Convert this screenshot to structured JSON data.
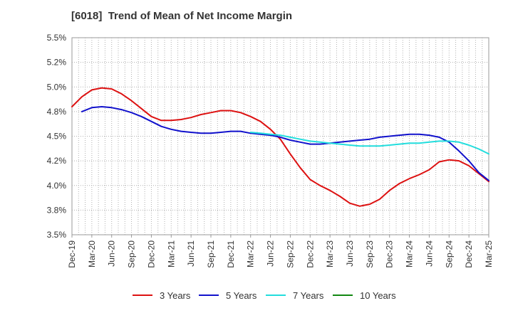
{
  "chart_data": {
    "type": "line",
    "title": "[6018]  Trend of Mean of Net Income Margin",
    "xlabel": "",
    "ylabel": "",
    "grid": true,
    "legend_position": "bottom",
    "ylim": [
      3.5,
      5.5
    ],
    "y_ticks": [
      "5.5%",
      "5.2%",
      "5.0%",
      "4.8%",
      "4.5%",
      "4.2%",
      "4.0%",
      "3.8%",
      "3.5%"
    ],
    "x_ticks": [
      "Dec-19",
      "Mar-20",
      "Jun-20",
      "Sep-20",
      "Dec-20",
      "Mar-21",
      "Jun-21",
      "Sep-21",
      "Dec-21",
      "Mar-22",
      "Jun-22",
      "Sep-22",
      "Dec-22",
      "Mar-23",
      "Jun-23",
      "Sep-23",
      "Dec-23",
      "Mar-24",
      "Jun-24",
      "Sep-24",
      "Dec-24",
      "Mar-25"
    ],
    "series": [
      {
        "name": "3 Years",
        "color": "#dd1111",
        "points": [
          [
            0,
            4.8
          ],
          [
            1,
            4.9
          ],
          [
            2,
            4.97
          ],
          [
            3,
            4.99
          ],
          [
            4,
            4.98
          ],
          [
            5,
            4.93
          ],
          [
            6,
            4.86
          ],
          [
            7,
            4.78
          ],
          [
            8,
            4.7
          ],
          [
            9,
            4.66
          ],
          [
            10,
            4.66
          ],
          [
            11,
            4.67
          ],
          [
            12,
            4.69
          ],
          [
            13,
            4.72
          ],
          [
            14,
            4.74
          ],
          [
            15,
            4.76
          ],
          [
            16,
            4.76
          ],
          [
            17,
            4.74
          ],
          [
            18,
            4.7
          ],
          [
            19,
            4.65
          ],
          [
            20,
            4.57
          ],
          [
            21,
            4.47
          ],
          [
            22,
            4.32
          ],
          [
            23,
            4.18
          ],
          [
            24,
            4.06
          ],
          [
            25,
            4.0
          ],
          [
            26,
            3.95
          ],
          [
            27,
            3.89
          ],
          [
            28,
            3.82
          ],
          [
            29,
            3.79
          ],
          [
            30,
            3.81
          ],
          [
            31,
            3.86
          ],
          [
            32,
            3.95
          ],
          [
            33,
            4.02
          ],
          [
            34,
            4.07
          ],
          [
            35,
            4.11
          ],
          [
            36,
            4.16
          ],
          [
            37,
            4.24
          ],
          [
            38,
            4.26
          ],
          [
            39,
            4.25
          ],
          [
            40,
            4.2
          ],
          [
            41,
            4.12
          ],
          [
            42,
            4.04
          ]
        ]
      },
      {
        "name": "5 Years",
        "color": "#1111cc",
        "points": [
          [
            1,
            4.75
          ],
          [
            2,
            4.79
          ],
          [
            3,
            4.8
          ],
          [
            4,
            4.79
          ],
          [
            5,
            4.77
          ],
          [
            6,
            4.74
          ],
          [
            7,
            4.7
          ],
          [
            8,
            4.65
          ],
          [
            9,
            4.6
          ],
          [
            10,
            4.57
          ],
          [
            11,
            4.55
          ],
          [
            12,
            4.54
          ],
          [
            13,
            4.53
          ],
          [
            14,
            4.53
          ],
          [
            15,
            4.54
          ],
          [
            16,
            4.55
          ],
          [
            17,
            4.55
          ],
          [
            18,
            4.53
          ],
          [
            19,
            4.52
          ],
          [
            20,
            4.51
          ],
          [
            21,
            4.49
          ],
          [
            22,
            4.46
          ],
          [
            23,
            4.44
          ],
          [
            24,
            4.42
          ],
          [
            25,
            4.42
          ],
          [
            26,
            4.43
          ],
          [
            27,
            4.44
          ],
          [
            28,
            4.45
          ],
          [
            29,
            4.46
          ],
          [
            30,
            4.47
          ],
          [
            31,
            4.49
          ],
          [
            32,
            4.5
          ],
          [
            33,
            4.51
          ],
          [
            34,
            4.52
          ],
          [
            35,
            4.52
          ],
          [
            36,
            4.51
          ],
          [
            37,
            4.49
          ],
          [
            38,
            4.44
          ],
          [
            39,
            4.35
          ],
          [
            40,
            4.25
          ],
          [
            41,
            4.13
          ],
          [
            42,
            4.05
          ]
        ]
      },
      {
        "name": "7 Years",
        "color": "#22dddd",
        "points": [
          [
            18,
            4.54
          ],
          [
            19,
            4.53
          ],
          [
            20,
            4.52
          ],
          [
            21,
            4.51
          ],
          [
            22,
            4.49
          ],
          [
            23,
            4.47
          ],
          [
            24,
            4.45
          ],
          [
            25,
            4.44
          ],
          [
            26,
            4.43
          ],
          [
            27,
            4.42
          ],
          [
            28,
            4.41
          ],
          [
            29,
            4.4
          ],
          [
            30,
            4.4
          ],
          [
            31,
            4.4
          ],
          [
            32,
            4.41
          ],
          [
            33,
            4.42
          ],
          [
            34,
            4.43
          ],
          [
            35,
            4.43
          ],
          [
            36,
            4.44
          ],
          [
            37,
            4.45
          ],
          [
            38,
            4.45
          ],
          [
            39,
            4.44
          ],
          [
            40,
            4.41
          ],
          [
            41,
            4.37
          ],
          [
            42,
            4.32
          ]
        ]
      },
      {
        "name": "10 Years",
        "color": "#118811",
        "points": []
      }
    ]
  }
}
